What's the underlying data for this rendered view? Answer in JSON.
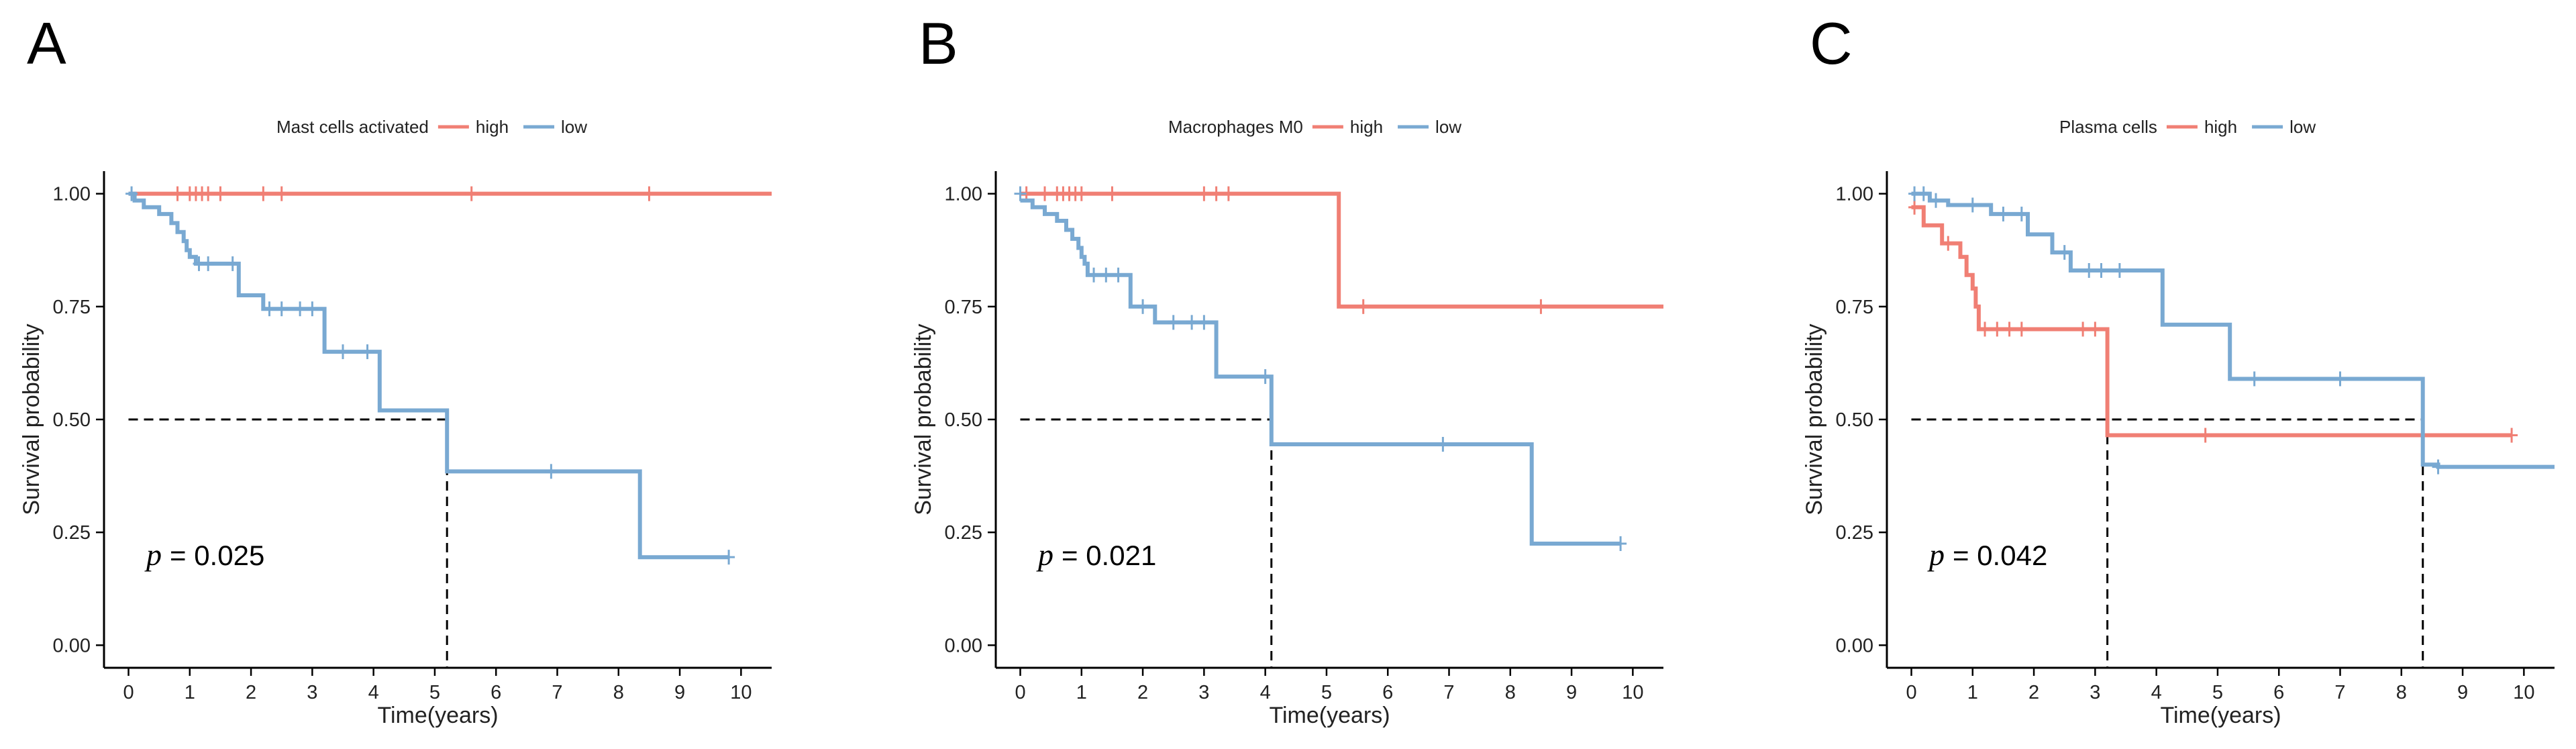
{
  "chart_data": [
    {
      "type": "line",
      "panel": "A",
      "legend_title": "Mast cells activated",
      "xlabel": "Time(years)",
      "ylabel": "Survival probability",
      "xlim": [
        -0.4,
        10.5
      ],
      "ylim": [
        -0.05,
        1.05
      ],
      "xticks": [
        0,
        1,
        2,
        3,
        4,
        5,
        6,
        7,
        8,
        9,
        10
      ],
      "yticks": [
        0,
        0.25,
        0.5,
        0.75,
        1
      ],
      "ytick_labels": [
        "0.00",
        "0.25",
        "0.50",
        "0.75",
        "1.00"
      ],
      "p_label": "p",
      "p_value_text": "= 0.025",
      "median_lines": [
        {
          "x": 5.2
        }
      ],
      "series": [
        {
          "name": "high",
          "color": "#F07F74",
          "steps": [
            [
              0,
              1.0
            ],
            [
              10.5,
              1.0
            ]
          ],
          "censors": [
            [
              0.8,
              1.0
            ],
            [
              1.0,
              1.0
            ],
            [
              1.1,
              1.0
            ],
            [
              1.2,
              1.0
            ],
            [
              1.3,
              1.0
            ],
            [
              1.5,
              1.0
            ],
            [
              2.2,
              1.0
            ],
            [
              2.5,
              1.0
            ],
            [
              5.6,
              1.0
            ],
            [
              8.5,
              1.0
            ]
          ]
        },
        {
          "name": "low",
          "color": "#79A9D2",
          "steps": [
            [
              0,
              1.0
            ],
            [
              0.1,
              0.985
            ],
            [
              0.25,
              0.97
            ],
            [
              0.5,
              0.955
            ],
            [
              0.7,
              0.935
            ],
            [
              0.8,
              0.915
            ],
            [
              0.9,
              0.895
            ],
            [
              0.95,
              0.875
            ],
            [
              1.0,
              0.86
            ],
            [
              1.1,
              0.845
            ],
            [
              1.8,
              0.775
            ],
            [
              2.2,
              0.745
            ],
            [
              3.2,
              0.65
            ],
            [
              4.1,
              0.52
            ],
            [
              5.2,
              0.385
            ],
            [
              8.35,
              0.195
            ],
            [
              9.8,
              0.195
            ]
          ],
          "censors": [
            [
              0.05,
              1.0
            ],
            [
              1.15,
              0.845
            ],
            [
              1.3,
              0.845
            ],
            [
              1.7,
              0.845
            ],
            [
              2.3,
              0.745
            ],
            [
              2.5,
              0.745
            ],
            [
              2.8,
              0.745
            ],
            [
              3.0,
              0.745
            ],
            [
              3.5,
              0.65
            ],
            [
              3.9,
              0.65
            ],
            [
              6.9,
              0.385
            ],
            [
              9.8,
              0.195
            ]
          ]
        }
      ]
    },
    {
      "type": "line",
      "panel": "B",
      "legend_title": "Macrophages M0",
      "xlabel": "Time(years)",
      "ylabel": "Survival probability",
      "xlim": [
        -0.4,
        10.5
      ],
      "ylim": [
        -0.05,
        1.05
      ],
      "xticks": [
        0,
        1,
        2,
        3,
        4,
        5,
        6,
        7,
        8,
        9,
        10
      ],
      "yticks": [
        0,
        0.25,
        0.5,
        0.75,
        1
      ],
      "ytick_labels": [
        "0.00",
        "0.25",
        "0.50",
        "0.75",
        "1.00"
      ],
      "p_label": "p",
      "p_value_text": "= 0.021",
      "median_lines": [
        {
          "x": 4.1
        }
      ],
      "series": [
        {
          "name": "high",
          "color": "#F07F74",
          "steps": [
            [
              0,
              1.0
            ],
            [
              5.2,
              0.75
            ],
            [
              10.5,
              0.75
            ]
          ],
          "censors": [
            [
              0.1,
              1.0
            ],
            [
              0.4,
              1.0
            ],
            [
              0.6,
              1.0
            ],
            [
              0.7,
              1.0
            ],
            [
              0.8,
              1.0
            ],
            [
              0.9,
              1.0
            ],
            [
              1.0,
              1.0
            ],
            [
              1.5,
              1.0
            ],
            [
              3.0,
              1.0
            ],
            [
              3.2,
              1.0
            ],
            [
              3.4,
              1.0
            ],
            [
              5.6,
              0.75
            ],
            [
              8.5,
              0.75
            ]
          ]
        },
        {
          "name": "low",
          "color": "#79A9D2",
          "steps": [
            [
              0,
              0.985
            ],
            [
              0.2,
              0.97
            ],
            [
              0.4,
              0.955
            ],
            [
              0.6,
              0.94
            ],
            [
              0.75,
              0.92
            ],
            [
              0.85,
              0.9
            ],
            [
              0.95,
              0.88
            ],
            [
              1.0,
              0.86
            ],
            [
              1.05,
              0.845
            ],
            [
              1.1,
              0.82
            ],
            [
              1.8,
              0.75
            ],
            [
              2.2,
              0.715
            ],
            [
              3.2,
              0.595
            ],
            [
              4.1,
              0.445
            ],
            [
              8.35,
              0.225
            ],
            [
              9.8,
              0.225
            ]
          ],
          "censors": [
            [
              0.0,
              1.0
            ],
            [
              1.2,
              0.82
            ],
            [
              1.4,
              0.82
            ],
            [
              1.6,
              0.82
            ],
            [
              2.0,
              0.75
            ],
            [
              2.5,
              0.715
            ],
            [
              2.8,
              0.715
            ],
            [
              3.0,
              0.715
            ],
            [
              4.0,
              0.595
            ],
            [
              6.9,
              0.445
            ],
            [
              9.8,
              0.225
            ]
          ]
        }
      ]
    },
    {
      "type": "line",
      "panel": "C",
      "legend_title": "Plasma cells",
      "xlabel": "Time(years)",
      "ylabel": "Survival probability",
      "xlim": [
        -0.4,
        10.5
      ],
      "ylim": [
        -0.05,
        1.05
      ],
      "xticks": [
        0,
        1,
        2,
        3,
        4,
        5,
        6,
        7,
        8,
        9,
        10
      ],
      "yticks": [
        0,
        0.25,
        0.5,
        0.75,
        1
      ],
      "ytick_labels": [
        "0.00",
        "0.25",
        "0.50",
        "0.75",
        "1.00"
      ],
      "p_label": "p",
      "p_value_text": "= 0.042",
      "median_lines": [
        {
          "x": 3.2
        },
        {
          "x": 8.35
        }
      ],
      "series": [
        {
          "name": "high",
          "color": "#F07F74",
          "steps": [
            [
              0,
              0.97
            ],
            [
              0.2,
              0.93
            ],
            [
              0.5,
              0.89
            ],
            [
              0.8,
              0.86
            ],
            [
              0.9,
              0.82
            ],
            [
              1.0,
              0.79
            ],
            [
              1.05,
              0.75
            ],
            [
              1.1,
              0.7
            ],
            [
              3.2,
              0.465
            ],
            [
              9.8,
              0.465
            ]
          ],
          "censors": [
            [
              0.05,
              0.97
            ],
            [
              0.6,
              0.89
            ],
            [
              1.2,
              0.7
            ],
            [
              1.4,
              0.7
            ],
            [
              1.6,
              0.7
            ],
            [
              1.8,
              0.7
            ],
            [
              2.8,
              0.7
            ],
            [
              3.0,
              0.7
            ],
            [
              4.8,
              0.465
            ],
            [
              9.8,
              0.465
            ]
          ]
        },
        {
          "name": "low",
          "color": "#79A9D2",
          "steps": [
            [
              0,
              1.0
            ],
            [
              0.3,
              0.985
            ],
            [
              0.6,
              0.975
            ],
            [
              1.3,
              0.955
            ],
            [
              1.9,
              0.91
            ],
            [
              2.3,
              0.87
            ],
            [
              2.6,
              0.83
            ],
            [
              4.1,
              0.71
            ],
            [
              5.2,
              0.59
            ],
            [
              8.35,
              0.4
            ],
            [
              8.6,
              0.395
            ],
            [
              10.5,
              0.395
            ]
          ],
          "censors": [
            [
              0.05,
              1.0
            ],
            [
              0.2,
              1.0
            ],
            [
              0.4,
              0.985
            ],
            [
              1.0,
              0.975
            ],
            [
              1.5,
              0.955
            ],
            [
              1.8,
              0.955
            ],
            [
              2.5,
              0.87
            ],
            [
              2.9,
              0.83
            ],
            [
              3.1,
              0.83
            ],
            [
              3.4,
              0.83
            ],
            [
              5.6,
              0.59
            ],
            [
              7.0,
              0.59
            ],
            [
              8.6,
              0.395
            ]
          ]
        }
      ]
    }
  ]
}
